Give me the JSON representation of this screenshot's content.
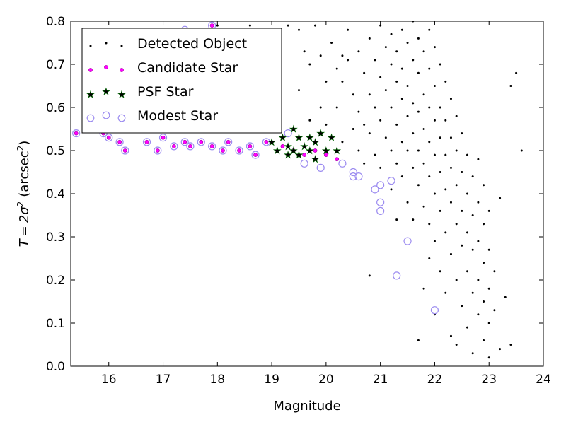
{
  "chart_data": {
    "type": "scatter",
    "title": "",
    "xlabel": "Magnitude",
    "ylabel": "T = 2σ² (arcsec²)",
    "ylabel_parts": {
      "lhs": "T",
      "eq": "=",
      "rhs": "2σ",
      "sup1": "2",
      "units_open": "(arcsec",
      "sup2": "2",
      "units_close": ")"
    },
    "xlim": [
      15.3,
      24.0
    ],
    "ylim": [
      0.0,
      0.8
    ],
    "xticks": [
      "16",
      "17",
      "18",
      "19",
      "20",
      "21",
      "22",
      "23",
      "24"
    ],
    "yticks": [
      "0.0",
      "0.1",
      "0.2",
      "0.3",
      "0.4",
      "0.5",
      "0.6",
      "0.7",
      "0.8"
    ],
    "grid": false,
    "legend_placement": "top-left",
    "legend": [
      {
        "label": "Detected Object",
        "marker": "dot",
        "color": "#000000"
      },
      {
        "label": "Candidate Star",
        "marker": "circle",
        "color": "#ff00ff"
      },
      {
        "label": "PSF Star",
        "marker": "star",
        "color": "#008000"
      },
      {
        "label": "Modest Star",
        "marker": "open-circle",
        "color": "#9c8cf0"
      }
    ],
    "series": [
      {
        "name": "Detected Object",
        "color": "#000000",
        "points": [
          [
            18.0,
            0.79
          ],
          [
            18.6,
            0.79
          ],
          [
            19.0,
            0.78
          ],
          [
            19.3,
            0.79
          ],
          [
            19.5,
            0.78
          ],
          [
            19.6,
            0.73
          ],
          [
            19.7,
            0.7
          ],
          [
            19.8,
            0.79
          ],
          [
            19.9,
            0.72
          ],
          [
            20.0,
            0.66
          ],
          [
            20.0,
            0.56
          ],
          [
            20.1,
            0.75
          ],
          [
            20.2,
            0.69
          ],
          [
            20.2,
            0.6
          ],
          [
            20.3,
            0.66
          ],
          [
            20.3,
            0.52
          ],
          [
            20.4,
            0.78
          ],
          [
            20.4,
            0.71
          ],
          [
            20.5,
            0.63
          ],
          [
            20.5,
            0.55
          ],
          [
            20.6,
            0.73
          ],
          [
            20.6,
            0.59
          ],
          [
            20.6,
            0.5
          ],
          [
            20.7,
            0.68
          ],
          [
            20.7,
            0.56
          ],
          [
            20.7,
            0.47
          ],
          [
            20.8,
            0.76
          ],
          [
            20.8,
            0.63
          ],
          [
            20.8,
            0.54
          ],
          [
            20.8,
            0.21
          ],
          [
            20.9,
            0.71
          ],
          [
            20.9,
            0.6
          ],
          [
            20.9,
            0.49
          ],
          [
            21.0,
            0.79
          ],
          [
            21.0,
            0.67
          ],
          [
            21.0,
            0.57
          ],
          [
            21.0,
            0.46
          ],
          [
            21.1,
            0.74
          ],
          [
            21.1,
            0.64
          ],
          [
            21.1,
            0.53
          ],
          [
            21.2,
            0.77
          ],
          [
            21.2,
            0.7
          ],
          [
            21.2,
            0.6
          ],
          [
            21.2,
            0.5
          ],
          [
            21.2,
            0.41
          ],
          [
            21.3,
            0.73
          ],
          [
            21.3,
            0.66
          ],
          [
            21.3,
            0.56
          ],
          [
            21.3,
            0.47
          ],
          [
            21.3,
            0.34
          ],
          [
            21.4,
            0.78
          ],
          [
            21.4,
            0.69
          ],
          [
            21.4,
            0.62
          ],
          [
            21.4,
            0.52
          ],
          [
            21.4,
            0.44
          ],
          [
            21.5,
            0.75
          ],
          [
            21.5,
            0.65
          ],
          [
            21.5,
            0.58
          ],
          [
            21.5,
            0.5
          ],
          [
            21.5,
            0.38
          ],
          [
            21.6,
            0.8
          ],
          [
            21.6,
            0.71
          ],
          [
            21.6,
            0.61
          ],
          [
            21.6,
            0.54
          ],
          [
            21.6,
            0.46
          ],
          [
            21.6,
            0.34
          ],
          [
            21.7,
            0.76
          ],
          [
            21.7,
            0.68
          ],
          [
            21.7,
            0.59
          ],
          [
            21.7,
            0.5
          ],
          [
            21.7,
            0.42
          ],
          [
            21.7,
            0.06
          ],
          [
            21.8,
            0.73
          ],
          [
            21.8,
            0.63
          ],
          [
            21.8,
            0.55
          ],
          [
            21.8,
            0.47
          ],
          [
            21.8,
            0.37
          ],
          [
            21.8,
            0.18
          ],
          [
            21.9,
            0.78
          ],
          [
            21.9,
            0.69
          ],
          [
            21.9,
            0.6
          ],
          [
            21.9,
            0.52
          ],
          [
            21.9,
            0.44
          ],
          [
            21.9,
            0.33
          ],
          [
            21.9,
            0.25
          ],
          [
            22.0,
            0.74
          ],
          [
            22.0,
            0.65
          ],
          [
            22.0,
            0.57
          ],
          [
            22.0,
            0.49
          ],
          [
            22.0,
            0.4
          ],
          [
            22.0,
            0.29
          ],
          [
            22.0,
            0.12
          ],
          [
            22.1,
            0.7
          ],
          [
            22.1,
            0.6
          ],
          [
            22.1,
            0.53
          ],
          [
            22.1,
            0.45
          ],
          [
            22.1,
            0.36
          ],
          [
            22.1,
            0.22
          ],
          [
            22.2,
            0.66
          ],
          [
            22.2,
            0.57
          ],
          [
            22.2,
            0.49
          ],
          [
            22.2,
            0.41
          ],
          [
            22.2,
            0.31
          ],
          [
            22.2,
            0.17
          ],
          [
            22.3,
            0.62
          ],
          [
            22.3,
            0.53
          ],
          [
            22.3,
            0.46
          ],
          [
            22.3,
            0.38
          ],
          [
            22.3,
            0.26
          ],
          [
            22.3,
            0.07
          ],
          [
            22.4,
            0.58
          ],
          [
            22.4,
            0.5
          ],
          [
            22.4,
            0.42
          ],
          [
            22.4,
            0.33
          ],
          [
            22.4,
            0.2
          ],
          [
            22.4,
            0.05
          ],
          [
            22.5,
            0.54
          ],
          [
            22.5,
            0.45
          ],
          [
            22.5,
            0.36
          ],
          [
            22.5,
            0.28
          ],
          [
            22.5,
            0.14
          ],
          [
            22.6,
            0.49
          ],
          [
            22.6,
            0.4
          ],
          [
            22.6,
            0.31
          ],
          [
            22.6,
            0.22
          ],
          [
            22.6,
            0.09
          ],
          [
            22.7,
            0.44
          ],
          [
            22.7,
            0.35
          ],
          [
            22.7,
            0.27
          ],
          [
            22.7,
            0.17
          ],
          [
            22.7,
            0.03
          ],
          [
            22.8,
            0.48
          ],
          [
            22.8,
            0.38
          ],
          [
            22.8,
            0.29
          ],
          [
            22.8,
            0.2
          ],
          [
            22.8,
            0.12
          ],
          [
            22.9,
            0.42
          ],
          [
            22.9,
            0.33
          ],
          [
            22.9,
            0.24
          ],
          [
            22.9,
            0.15
          ],
          [
            22.9,
            0.06
          ],
          [
            23.0,
            0.36
          ],
          [
            23.0,
            0.27
          ],
          [
            23.0,
            0.18
          ],
          [
            23.0,
            0.1
          ],
          [
            23.0,
            0.02
          ],
          [
            23.1,
            0.22
          ],
          [
            23.1,
            0.13
          ],
          [
            23.2,
            0.39
          ],
          [
            23.2,
            0.04
          ],
          [
            23.3,
            0.16
          ],
          [
            23.4,
            0.65
          ],
          [
            23.5,
            0.68
          ],
          [
            23.6,
            0.5
          ],
          [
            23.4,
            0.05
          ],
          [
            19.5,
            0.64
          ],
          [
            19.7,
            0.57
          ],
          [
            20.3,
            0.72
          ],
          [
            19.9,
            0.6
          ],
          [
            20.1,
            0.53
          ]
        ]
      },
      {
        "name": "Candidate Star",
        "color": "#ff00ff",
        "points": [
          [
            15.4,
            0.54
          ],
          [
            15.9,
            0.54
          ],
          [
            16.0,
            0.53
          ],
          [
            16.2,
            0.52
          ],
          [
            16.3,
            0.5
          ],
          [
            16.5,
            0.55
          ],
          [
            16.7,
            0.52
          ],
          [
            16.9,
            0.5
          ],
          [
            17.0,
            0.53
          ],
          [
            17.2,
            0.51
          ],
          [
            17.4,
            0.52
          ],
          [
            17.5,
            0.51
          ],
          [
            17.7,
            0.52
          ],
          [
            17.9,
            0.51
          ],
          [
            18.1,
            0.5
          ],
          [
            18.2,
            0.52
          ],
          [
            18.4,
            0.5
          ],
          [
            18.6,
            0.51
          ],
          [
            18.7,
            0.49
          ],
          [
            18.9,
            0.52
          ],
          [
            19.2,
            0.51
          ],
          [
            19.4,
            0.5
          ],
          [
            19.6,
            0.49
          ],
          [
            19.8,
            0.5
          ],
          [
            20.0,
            0.49
          ],
          [
            20.2,
            0.48
          ],
          [
            17.4,
            0.78
          ],
          [
            17.9,
            0.79
          ]
        ]
      },
      {
        "name": "PSF Star",
        "color": "#008000",
        "points": [
          [
            19.0,
            0.52
          ],
          [
            19.1,
            0.5
          ],
          [
            19.2,
            0.53
          ],
          [
            19.3,
            0.49
          ],
          [
            19.3,
            0.51
          ],
          [
            19.4,
            0.5
          ],
          [
            19.5,
            0.53
          ],
          [
            19.5,
            0.49
          ],
          [
            19.6,
            0.51
          ],
          [
            19.7,
            0.5
          ],
          [
            19.8,
            0.48
          ],
          [
            19.8,
            0.52
          ],
          [
            19.9,
            0.54
          ],
          [
            20.0,
            0.5
          ],
          [
            20.1,
            0.53
          ],
          [
            20.2,
            0.5
          ],
          [
            19.7,
            0.53
          ],
          [
            19.4,
            0.55
          ]
        ]
      },
      {
        "name": "Modest Star",
        "color": "#9c8cf0",
        "points": [
          [
            15.4,
            0.54
          ],
          [
            15.9,
            0.54
          ],
          [
            16.0,
            0.53
          ],
          [
            16.2,
            0.52
          ],
          [
            16.3,
            0.5
          ],
          [
            16.5,
            0.55
          ],
          [
            16.7,
            0.52
          ],
          [
            16.9,
            0.5
          ],
          [
            17.0,
            0.53
          ],
          [
            17.2,
            0.51
          ],
          [
            17.4,
            0.52
          ],
          [
            17.5,
            0.51
          ],
          [
            17.7,
            0.52
          ],
          [
            17.9,
            0.51
          ],
          [
            18.1,
            0.5
          ],
          [
            18.2,
            0.52
          ],
          [
            18.4,
            0.5
          ],
          [
            18.6,
            0.51
          ],
          [
            18.7,
            0.49
          ],
          [
            18.9,
            0.52
          ],
          [
            19.3,
            0.54
          ],
          [
            19.6,
            0.47
          ],
          [
            19.9,
            0.46
          ],
          [
            20.3,
            0.47
          ],
          [
            20.5,
            0.45
          ],
          [
            20.5,
            0.44
          ],
          [
            20.6,
            0.44
          ],
          [
            20.9,
            0.41
          ],
          [
            21.0,
            0.42
          ],
          [
            21.0,
            0.38
          ],
          [
            21.0,
            0.36
          ],
          [
            21.2,
            0.43
          ],
          [
            21.3,
            0.21
          ],
          [
            21.5,
            0.29
          ],
          [
            22.0,
            0.13
          ],
          [
            17.4,
            0.78
          ],
          [
            17.9,
            0.79
          ]
        ]
      }
    ]
  }
}
